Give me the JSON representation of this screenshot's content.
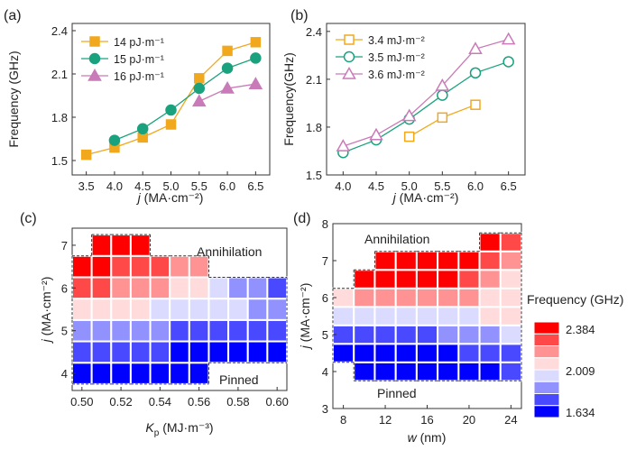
{
  "chart_data": [
    {
      "panel": "(a)",
      "type": "line",
      "xlabel_italic": "j",
      "xlabel_rest": " (MA·cm⁻²)",
      "ylabel": "Frequency (GHz)",
      "xlim": [
        3.25,
        6.75
      ],
      "ylim": [
        1.4,
        2.45
      ],
      "xticks": [
        3.5,
        4.0,
        4.5,
        5.0,
        5.5,
        6.0,
        6.5
      ],
      "xtick_labels": [
        "3.5",
        "4.0",
        "4.5",
        "5.0",
        "5.5",
        "6.0",
        "6.5"
      ],
      "yticks": [
        1.5,
        1.8,
        2.1,
        2.4
      ],
      "ytick_labels": [
        "1.5",
        "1.8",
        "2.1",
        "2.4"
      ],
      "legend_position": "top-left",
      "series": [
        {
          "name": "14 pJ·m⁻¹",
          "marker": "square",
          "filled": true,
          "color": "#F2A81D",
          "x": [
            3.5,
            4.0,
            4.5,
            5.0,
            5.5,
            6.0,
            6.5
          ],
          "values": [
            1.54,
            1.59,
            1.66,
            1.75,
            2.07,
            2.26,
            2.32
          ]
        },
        {
          "name": "15 pJ·m⁻¹",
          "marker": "circle",
          "filled": true,
          "color": "#1AA27E",
          "x": [
            4.0,
            4.5,
            5.0,
            5.5,
            6.0,
            6.5
          ],
          "values": [
            1.64,
            1.72,
            1.85,
            2.0,
            2.14,
            2.21
          ]
        },
        {
          "name": "16 pJ·m⁻¹",
          "marker": "triangle",
          "filled": true,
          "color": "#C97AB8",
          "x": [
            5.5,
            6.0,
            6.5
          ],
          "values": [
            1.91,
            2.0,
            2.03
          ]
        }
      ]
    },
    {
      "panel": "(b)",
      "type": "line",
      "xlabel_italic": "j",
      "xlabel_rest": " (MA·cm⁻²)",
      "ylabel": "Frequency(GHz)",
      "xlim": [
        3.75,
        6.75
      ],
      "ylim": [
        1.5,
        2.45
      ],
      "xticks": [
        4.0,
        4.5,
        5.0,
        5.5,
        6.0,
        6.5
      ],
      "xtick_labels": [
        "4.0",
        "4.5",
        "5.0",
        "5.5",
        "6.0",
        "6.5"
      ],
      "yticks": [
        1.5,
        1.8,
        2.1,
        2.4
      ],
      "ytick_labels": [
        "1.5",
        "1.8",
        "2.1",
        "2.4"
      ],
      "legend_position": "top-left",
      "series": [
        {
          "name": "3.4 mJ·m⁻²",
          "marker": "square",
          "filled": false,
          "color": "#F2A81D",
          "x": [
            5.0,
            5.5,
            6.0
          ],
          "values": [
            1.74,
            1.86,
            1.94
          ]
        },
        {
          "name": "3.5 mJ·m⁻²",
          "marker": "circle",
          "filled": false,
          "color": "#1AA27E",
          "x": [
            4.0,
            4.5,
            5.0,
            5.5,
            6.0,
            6.5
          ],
          "values": [
            1.64,
            1.72,
            1.85,
            2.0,
            2.14,
            2.21
          ]
        },
        {
          "name": "3.6 mJ·m⁻²",
          "marker": "triangle",
          "filled": false,
          "color": "#C97AB8",
          "x": [
            4.0,
            4.5,
            5.0,
            5.5,
            6.0,
            6.5
          ],
          "values": [
            1.68,
            1.75,
            1.87,
            2.06,
            2.29,
            2.35
          ]
        }
      ]
    },
    {
      "panel": "(c)",
      "type": "heatmap",
      "xlabel_italic": "K",
      "xlabel_sub": "p",
      "xlabel_rest": " (MJ·m⁻³)",
      "ylabel_italic": "j",
      "ylabel_rest": " (MA·cm⁻²)",
      "xlim": [
        0.495,
        0.605
      ],
      "ylim": [
        3.6,
        7.4
      ],
      "xticks": [
        0.5,
        0.52,
        0.54,
        0.56,
        0.58,
        0.6
      ],
      "xtick_labels": [
        "0.50",
        "0.52",
        "0.54",
        "0.56",
        "0.58",
        "0.60"
      ],
      "yticks": [
        4,
        5,
        6,
        7
      ],
      "ytick_labels": [
        "4",
        "5",
        "6",
        "7"
      ],
      "x": [
        0.5,
        0.51,
        0.52,
        0.53,
        0.54,
        0.55,
        0.56,
        0.57,
        0.58,
        0.59,
        0.6
      ],
      "y": [
        4.0,
        4.5,
        5.0,
        5.5,
        6.0,
        6.5,
        7.0
      ],
      "values": [
        [
          1.68,
          1.67,
          1.66,
          1.65,
          1.64,
          1.64,
          1.64,
          null,
          null,
          null,
          null
        ],
        [
          1.77,
          1.76,
          1.75,
          1.74,
          1.73,
          1.72,
          1.71,
          1.69,
          1.67,
          1.65,
          1.64
        ],
        [
          1.87,
          1.86,
          1.85,
          1.84,
          1.83,
          1.82,
          1.81,
          1.79,
          1.77,
          1.75,
          1.73
        ],
        [
          2.08,
          2.06,
          2.04,
          2.02,
          2.0,
          1.98,
          1.96,
          1.94,
          1.92,
          1.91,
          1.9
        ],
        [
          2.24,
          2.22,
          2.19,
          2.16,
          2.12,
          2.08,
          2.05,
          1.94,
          1.89,
          1.85,
          1.82
        ],
        [
          2.33,
          2.31,
          2.29,
          2.26,
          2.22,
          2.18,
          2.14,
          null,
          null,
          null,
          null
        ],
        [
          null,
          2.37,
          2.36,
          2.33,
          null,
          null,
          null,
          null,
          null,
          null,
          null
        ]
      ],
      "annotations": [
        "Annihilation",
        "Pinned"
      ]
    },
    {
      "panel": "(d)",
      "type": "heatmap",
      "xlabel_italic": "w",
      "xlabel_rest": " (nm)",
      "ylabel_italic": "j",
      "ylabel_rest": " (MA·cm⁻²)",
      "xlim": [
        7,
        25
      ],
      "ylim": [
        3,
        8
      ],
      "xticks": [
        8,
        12,
        16,
        20,
        24
      ],
      "xtick_labels": [
        "8",
        "12",
        "16",
        "20",
        "24"
      ],
      "yticks": [
        3,
        4,
        5,
        6,
        7,
        8
      ],
      "ytick_labels": [
        "3",
        "4",
        "5",
        "6",
        "7",
        "8"
      ],
      "x": [
        8,
        10,
        12,
        14,
        16,
        18,
        20,
        22,
        24
      ],
      "y": [
        4.0,
        4.5,
        5.0,
        5.5,
        6.0,
        6.5,
        7.0,
        7.5
      ],
      "values": [
        [
          null,
          1.64,
          1.64,
          1.64,
          1.64,
          1.65,
          1.66,
          1.7,
          1.74
        ],
        [
          1.72,
          1.7,
          1.69,
          1.7,
          1.71,
          1.72,
          1.74,
          1.77,
          1.82
        ],
        [
          1.8,
          1.79,
          1.79,
          1.8,
          1.82,
          1.84,
          1.86,
          1.89,
          1.93
        ],
        [
          1.93,
          1.96,
          1.97,
          1.98,
          1.98,
          1.99,
          2.0,
          2.01,
          2.03
        ],
        [
          2.02,
          2.12,
          2.16,
          2.17,
          2.17,
          2.16,
          2.12,
          2.08,
          2.03
        ],
        [
          null,
          2.34,
          2.33,
          2.33,
          2.32,
          2.3,
          2.27,
          2.19,
          2.1
        ],
        [
          null,
          null,
          2.38,
          2.38,
          2.38,
          2.37,
          2.34,
          2.26,
          2.16
        ],
        [
          null,
          null,
          null,
          null,
          null,
          null,
          null,
          2.35,
          2.22
        ]
      ],
      "annotations": [
        "Annihilation",
        "Pinned"
      ]
    }
  ],
  "colorbar": {
    "title": "Frequency (GHz)",
    "min": 1.634,
    "mid": 2.009,
    "max": 2.384,
    "labels": [
      "2.384",
      "2.009",
      "1.634"
    ],
    "colors": [
      "#0000FF",
      "#FFFFFF",
      "#FF0000"
    ]
  },
  "panel_labels": [
    "(a)",
    "(b)",
    "(c)",
    "(d)"
  ]
}
